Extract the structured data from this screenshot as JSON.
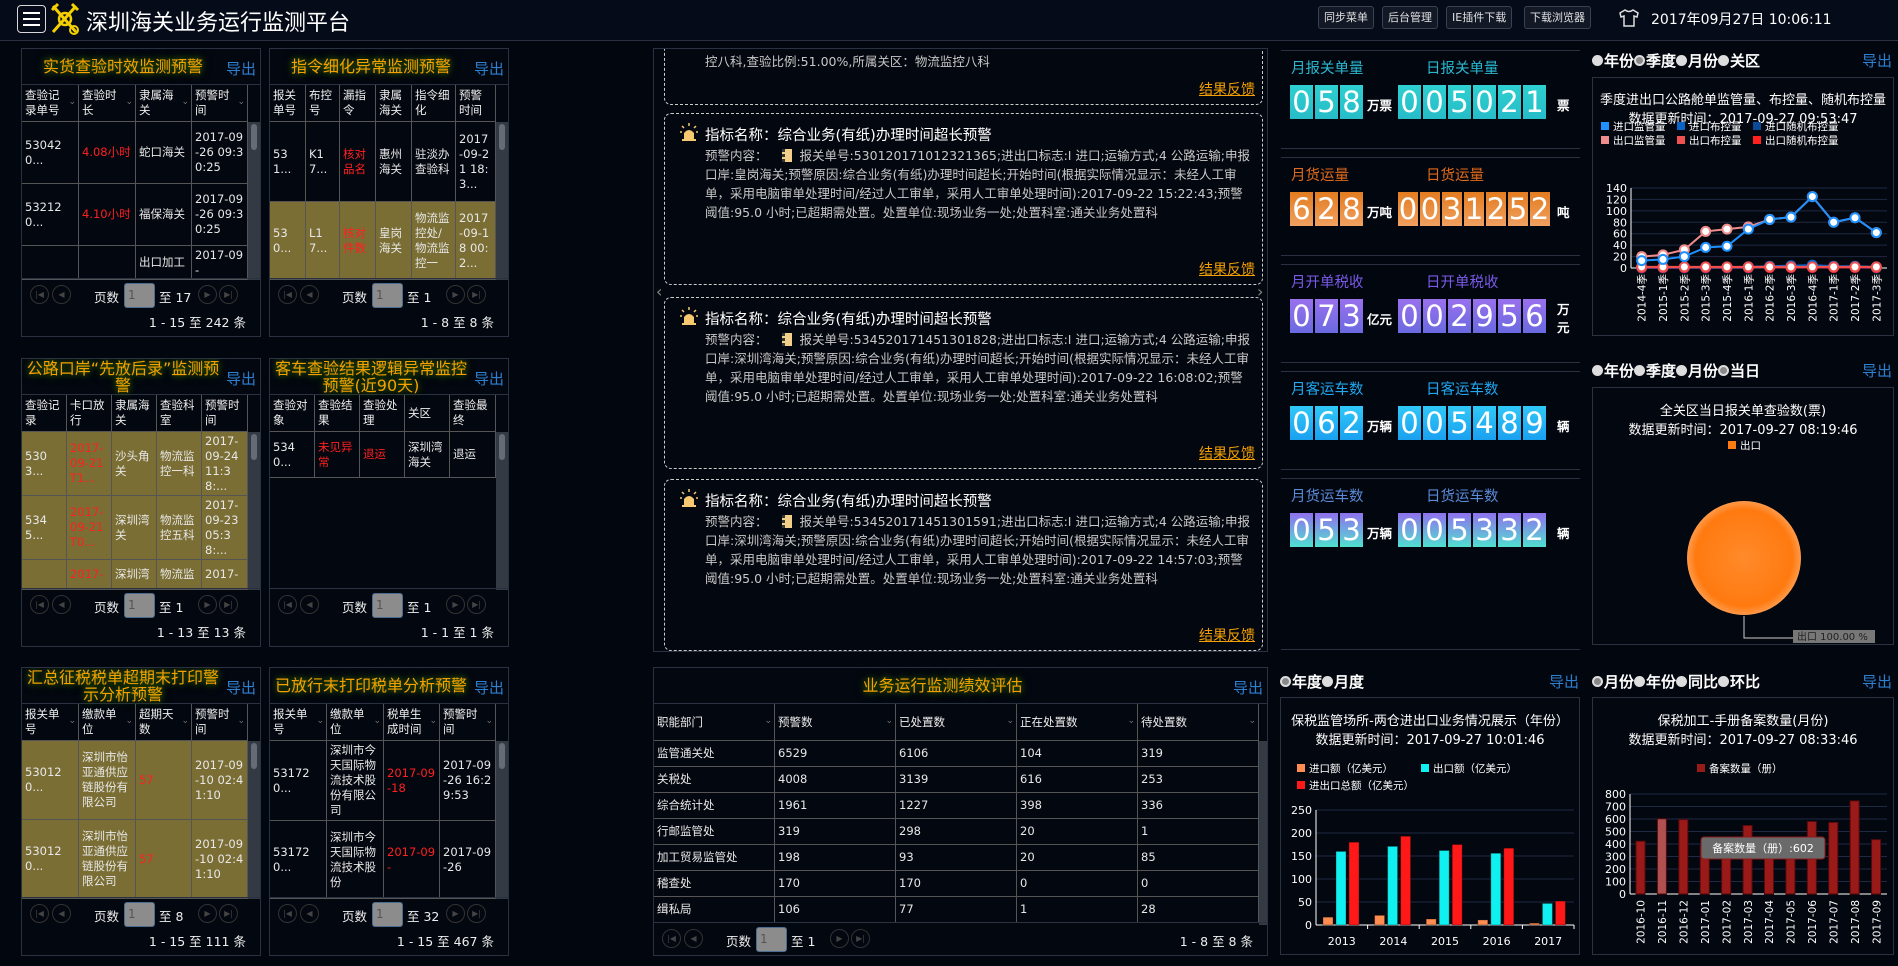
{
  "header": {
    "title": "深圳海关业务运行监测平台",
    "buttons": [
      "同步菜单",
      "后台管理",
      "IE插件下载",
      "下载浏览器"
    ],
    "clock": "2017年09月27日 10:06:11"
  },
  "common": {
    "export": "导出",
    "page_label": "页数",
    "page_value": "1",
    "feedback": "结果反馈"
  },
  "tables": [
    {
      "title": "实货查验时效监测预警",
      "total_pages": "至 17",
      "info": "1 - 15 至 242 条",
      "columns": [
        "查验记录单号",
        "查验时长",
        "隶属海关",
        "预警时间"
      ],
      "rows": [
        {
          "hl": false,
          "cells": [
            "530420...",
            "4.08小时",
            "蛇口海关",
            "2017-09-26 09:30:25"
          ],
          "red": [
            1
          ]
        },
        {
          "hl": false,
          "cells": [
            "532120...",
            "4.10小时",
            "福保海关",
            "2017-09-26 09:30:25"
          ],
          "red": [
            1
          ]
        },
        {
          "hl": false,
          "cells": [
            "",
            "",
            "出口加工",
            "2017-09-"
          ],
          "red": []
        }
      ]
    },
    {
      "title": "指令细化异常监测预警",
      "total_pages": "至 1",
      "info": "1 - 8 至 8 条",
      "columns": [
        "报关单号",
        "布控号",
        "漏指令",
        "隶属海关",
        "指令细化",
        "预警时间"
      ],
      "rows": [
        {
          "hl": false,
          "cells": [
            "531...",
            "K17...",
            "核对品名",
            "惠州海关",
            "驻淡办查验科",
            "2017-09-21 18:3..."
          ],
          "red": [
            2
          ]
        },
        {
          "hl": true,
          "cells": [
            "530...",
            "L17...",
            "核对件数",
            "皇岗海关",
            "物流监控处/物流监控一",
            "2017-09-18 00:2..."
          ],
          "red": [
            2
          ]
        }
      ]
    },
    {
      "title": "公路口岸“先放后录”监测预警",
      "total_pages": "至 1",
      "info": "1 - 13 至 13 条",
      "columns": [
        "查验记录",
        "卡口放行",
        "隶属海关",
        "查验科室",
        "预警时间"
      ],
      "rows": [
        {
          "hl": true,
          "cells": [
            "5303...",
            "2017-09-21T1...",
            "沙头角关",
            "物流监控一科",
            "2017-09-24 11:38:..."
          ],
          "red": [
            1
          ]
        },
        {
          "hl": true,
          "cells": [
            "5345...",
            "2017-09-21T0...",
            "深圳湾关",
            "物流监控五科",
            "2017-09-23 05:38:..."
          ],
          "red": [
            1
          ]
        },
        {
          "hl": true,
          "cells": [
            "",
            "2017-",
            "深圳湾",
            "物流监",
            "2017-"
          ],
          "red": [
            1
          ]
        }
      ]
    },
    {
      "title": "客车查验结果逻辑异常监控预警(近90天)",
      "total_pages": "至 1",
      "info": "1 - 1 至 1 条",
      "columns": [
        "查验对象",
        "查验结果",
        "查验处理",
        "关区",
        "查验最终"
      ],
      "rows": [
        {
          "hl": false,
          "cells": [
            "5340...",
            "未见异常",
            "退运",
            "深圳湾海关",
            "退运"
          ],
          "red": [
            1,
            2
          ]
        }
      ]
    },
    {
      "title": "汇总征税税单超期末打印警示分析预警",
      "total_pages": "至 8",
      "info": "1 - 15 至 111 条",
      "columns": [
        "报关单号",
        "缴款单位",
        "超期天数",
        "预警时间"
      ],
      "rows": [
        {
          "hl": true,
          "cells": [
            "530120...",
            "深圳市怡亚通供应链股份有限公司",
            "57",
            "2017-09-10 02:41:10"
          ],
          "red": [
            2
          ]
        },
        {
          "hl": true,
          "cells": [
            "530120...",
            "深圳市怡亚通供应链股份有限公司",
            "57",
            "2017-09-10 02:41:10"
          ],
          "red": [
            2
          ]
        }
      ]
    },
    {
      "title": "已放行末打印税单分析预警",
      "total_pages": "至 32",
      "info": "1 - 15 至 467 条",
      "columns": [
        "报关单号",
        "缴款单位",
        "税单生成时间",
        "预警时间"
      ],
      "rows": [
        {
          "hl": false,
          "cells": [
            "531720...",
            "深圳市今天国际物流技术股份有限公司",
            "2017-09-18",
            "2017-09-26 16:29:53"
          ],
          "red": [
            2
          ]
        },
        {
          "hl": false,
          "cells": [
            "531720...",
            "深圳市今天国际物流技术股份",
            "2017-09-",
            "2017-09-26"
          ],
          "red": [
            2
          ]
        }
      ]
    }
  ],
  "alerts": {
    "partial_text": "控八科,查验比例:51.00%,所属关区：物流监控八科",
    "items": [
      {
        "title": "指标名称：综合业务(有纸)办理时间超长预警",
        "label": "预警内容：",
        "text": "报关单号:530120171012321365;进出口标志:I 进口;运输方式;4 公路运输;申报口岸:皇岗海关;预警原因:综合业务(有纸)办理时间超长;开始时间(根据实际情况显示：未经人工审单，采用电脑审单处理时间/经过人工审单，采用人工审单处理时间):2017-09-22 15:22:43;预警阈值:95.0 小时;已超期需处置。处置单位:现场业务一处;处置科室:通关业务处置科"
      },
      {
        "title": "指标名称：综合业务(有纸)办理时间超长预警",
        "label": "预警内容：",
        "text": "报关单号:534520171451301828;进出口标志:I 进口;运输方式;4 公路运输;申报口岸:深圳湾海关;预警原因:综合业务(有纸)办理时间超长;开始时间(根据实际情况显示：未经人工审单，采用电脑审单处理时间/经过人工审单，采用人工审单处理时间):2017-09-22 16:08:02;预警阈值:95.0 小时;已超期需处置。处置单位:现场业务一处;处置科室:通关业务处置科"
      },
      {
        "title": "指标名称：综合业务(有纸)办理时间超长预警",
        "label": "预警内容：",
        "text": "报关单号:534520171451301591;进出口标志:I 进口;运输方式;4 公路运输;申报口岸:深圳湾海关;预警原因:综合业务(有纸)办理时间超长;开始时间(根据实际情况显示：未经人工审单，采用电脑审单处理时间/经过人工审单，采用人工审单处理时间):2017-09-22 14:57:03;预警阈值:95.0 小时;已超期需处置。处置单位:现场业务一处;处置科室:通关业务处置科"
      }
    ]
  },
  "performance": {
    "title": "业务运行监测绩效评估",
    "total_pages": "至 1",
    "info": "1 - 8 至 8 条",
    "columns": [
      "职能部门",
      "预警数",
      "已处置数",
      "正在处置数",
      "待处置数"
    ],
    "rows": [
      [
        "监管通关处",
        "6529",
        "6106",
        "104",
        "319"
      ],
      [
        "关税处",
        "4008",
        "3139",
        "616",
        "253"
      ],
      [
        "综合统计处",
        "1961",
        "1227",
        "398",
        "336"
      ],
      [
        "行邮监管处",
        "319",
        "298",
        "20",
        "1"
      ],
      [
        "加工贸易监管处",
        "198",
        "93",
        "20",
        "85"
      ],
      [
        "稽查处",
        "170",
        "170",
        "0",
        "0"
      ],
      [
        "缉私局",
        "106",
        "77",
        "1",
        "28"
      ]
    ]
  },
  "stats": [
    {
      "m_label": "月报关单量",
      "m_digits": "058",
      "m_unit": "万票",
      "d_label": "日报关单量",
      "d_digits": "005021",
      "d_unit": "票",
      "color": "#2ab8d0",
      "box_top": "#2ed0d0",
      "box_bottom": "#26bcc8"
    },
    {
      "m_label": "月货运量",
      "m_digits": "628",
      "m_unit": "万吨",
      "d_label": "日货运量",
      "d_digits": "0031252",
      "d_unit": "吨",
      "color": "#e06a1c",
      "box_top": "#e37c20",
      "box_bottom": "#f0a060"
    },
    {
      "m_label": "月开单税收",
      "m_digits": "073",
      "m_unit": "亿元",
      "d_label": "日开单税收",
      "d_digits": "002956",
      "d_unit": "万元",
      "color": "#7a5ae8",
      "box_top": "#9a70ee",
      "box_bottom": "#6a6ae0"
    },
    {
      "m_label": "月客运车数",
      "m_digits": "062",
      "m_unit": "万辆",
      "d_label": "日客运车数",
      "d_digits": "005489",
      "d_unit": "辆",
      "color": "#20a8f0",
      "box_top": "#30c8f8",
      "box_bottom": "#1aa0f0"
    },
    {
      "m_label": "月货运车数",
      "m_digits": "053",
      "m_unit": "万辆",
      "d_label": "日货运车数",
      "d_digits": "005332",
      "d_unit": "辆",
      "color": "#5a8ad8",
      "box_top": "#9070ee",
      "box_bottom": "#50e0d0"
    }
  ],
  "radios": {
    "line": {
      "options": [
        "年份",
        "季度",
        "月份",
        "关区"
      ],
      "selected": 1
    },
    "pie": {
      "options": [
        "年份",
        "季度",
        "月份",
        "当日"
      ],
      "selected": 3
    },
    "bar": {
      "options": [
        "年度",
        "月度"
      ],
      "selected": 0
    },
    "monthly": {
      "options": [
        "月份",
        "年份",
        "同比",
        "环比"
      ],
      "selected": 0
    }
  },
  "chart_data": [
    {
      "type": "line",
      "title": "季度进出口公路舱单监管量、布控量、随机布控量",
      "subtitle": "数据更新时间：2017-09-27 09:53:47",
      "categories": [
        "2014-4季",
        "2015-1季",
        "2015-2季",
        "2015-3季",
        "2015-4季",
        "2016-1季",
        "2016-2季",
        "2016-3季",
        "2016-4季",
        "2017-1季",
        "2017-2季",
        "2017-3季"
      ],
      "ylim": [
        0,
        140
      ],
      "yticks": [
        0,
        20,
        40,
        60,
        80,
        100,
        120,
        140
      ],
      "grid": true,
      "legend": "top",
      "series": [
        {
          "name": "进口监管量",
          "color": "#1e90ff",
          "values": [
            13,
            15,
            20,
            36,
            38,
            68,
            85,
            89,
            125,
            80,
            88,
            62
          ]
        },
        {
          "name": "进口布控量",
          "color": "#0a64c8",
          "values": [
            1,
            1,
            1,
            1,
            1,
            2,
            3,
            4,
            5,
            3,
            3,
            2
          ]
        },
        {
          "name": "进口随机布控量",
          "color": "#0a4a96",
          "values": [
            0,
            0,
            0,
            0,
            0,
            0,
            1,
            1,
            1,
            1,
            1,
            0
          ]
        },
        {
          "name": "出口监管量",
          "color": "#f08c8c",
          "values": [
            20,
            23,
            32,
            64,
            68,
            72,
            85,
            89,
            125,
            80,
            88,
            62
          ]
        },
        {
          "name": "出口布控量",
          "color": "#f05050",
          "values": [
            2,
            2,
            2,
            2,
            2,
            2,
            2,
            2,
            2,
            2,
            2,
            2
          ]
        },
        {
          "name": "出口随机布控量",
          "color": "#ff2020",
          "values": [
            1,
            1,
            1,
            1,
            1,
            1,
            1,
            1,
            1,
            1,
            1,
            1
          ]
        }
      ]
    },
    {
      "type": "pie",
      "title": "全关区当日报关单查验数(票)",
      "subtitle": "数据更新时间：2017-09-27 08:19:46",
      "slices": [
        {
          "name": "出口",
          "value": 100,
          "color": "#ff7a10"
        }
      ],
      "slice_label": "出口 100.00 %",
      "legend": "top"
    },
    {
      "type": "bar",
      "title": "保税监管场所-两仓进出口业务情况展示（年份）",
      "subtitle": "数据更新时间：2017-09-27 10:01:46",
      "categories": [
        "2013",
        "2014",
        "2015",
        "2016",
        "2017"
      ],
      "ylim": [
        0,
        250
      ],
      "yticks": [
        0,
        50,
        100,
        150,
        200,
        250
      ],
      "grid": true,
      "legend": "top",
      "series": [
        {
          "name": "进口额（亿美元）",
          "color": "#ff8c50",
          "values": [
            17,
            21,
            13,
            11,
            4
          ]
        },
        {
          "name": "出口额（亿美元）",
          "color": "#10f0f0",
          "values": [
            160,
            171,
            162,
            156,
            47
          ]
        },
        {
          "name": "进出口总额（亿美元）",
          "color": "#ff1818",
          "values": [
            180,
            193,
            175,
            167,
            52
          ]
        }
      ]
    },
    {
      "type": "bar",
      "title": "保税加工-手册备案数量(月份)",
      "subtitle": "数据更新时间：2017-09-27 08:33:46",
      "categories": [
        "2016-10",
        "2016-11",
        "2016-12",
        "2017-01",
        "2017-02",
        "2017-03",
        "2017-04",
        "2017-05",
        "2017-06",
        "2017-07",
        "2017-08",
        "2017-09"
      ],
      "ylim": [
        0,
        800
      ],
      "yticks": [
        0,
        100,
        200,
        300,
        400,
        500,
        600,
        700,
        800
      ],
      "grid": true,
      "legend": "top",
      "series": [
        {
          "name": "备案数量（册）",
          "color": "#9a1a1a",
          "values": [
            422,
            602,
            595,
            380,
            400,
            548,
            360,
            390,
            580,
            572,
            745,
            435
          ]
        }
      ],
      "tooltip": "备案数量（册）:602",
      "highlight_index": 1
    }
  ]
}
